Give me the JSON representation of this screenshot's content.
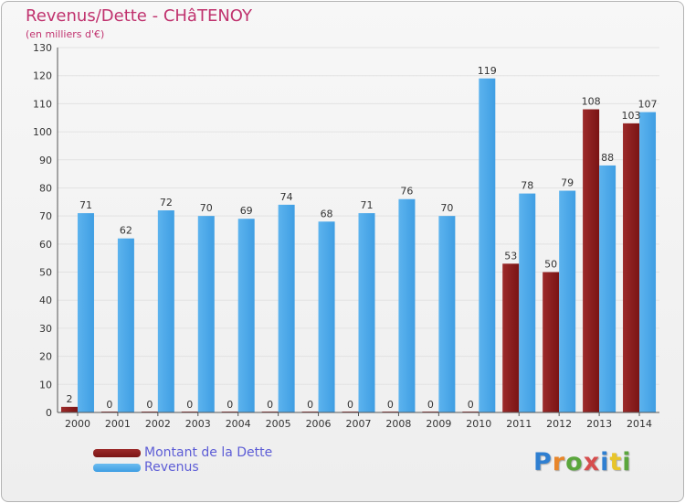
{
  "title": "Revenus/Dette - CHâTENOY",
  "subtitle": "(en milliers d'€)",
  "brand": {
    "text": "Proxiti",
    "letter_colors": [
      "#2f7fd1",
      "#e8862a",
      "#5aa63c",
      "#d64d4d",
      "#2f7fd1",
      "#e8c52a",
      "#5aa63c"
    ]
  },
  "colors": {
    "accent": "#c0326e",
    "debt": "#7a1414",
    "revenue": "#3f9ee3",
    "grid": "#e2e2e2",
    "axis": "#555555"
  },
  "chart_data": {
    "type": "bar",
    "title": "Revenus/Dette - CHâTENOY",
    "ylabel": "(en milliers d'€)",
    "xlabel": "",
    "ylim": [
      0,
      130
    ],
    "yticks": [
      0,
      10,
      20,
      30,
      40,
      50,
      60,
      70,
      80,
      90,
      100,
      110,
      120,
      130
    ],
    "grid": true,
    "legend_position": "bottom-left",
    "categories": [
      "2000",
      "2001",
      "2002",
      "2003",
      "2004",
      "2005",
      "2006",
      "2007",
      "2008",
      "2009",
      "2010",
      "2011",
      "2012",
      "2013",
      "2014"
    ],
    "series": [
      {
        "name": "Montant de la Dette",
        "values": [
          2,
          0,
          0,
          0,
          0,
          0,
          0,
          0,
          0,
          0,
          0,
          53,
          50,
          108,
          103
        ]
      },
      {
        "name": "Revenus",
        "values": [
          71,
          62,
          72,
          70,
          69,
          74,
          68,
          71,
          76,
          70,
          119,
          78,
          79,
          88,
          107
        ]
      }
    ]
  }
}
